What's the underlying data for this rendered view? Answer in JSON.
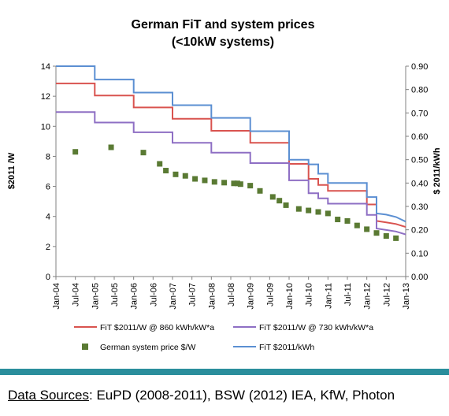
{
  "footer": {
    "source_label": "Data Sources",
    "source_text": ": EuPD (2008-2011), BSW (2012) IEA, KfW, Photon"
  },
  "colors": {
    "red": "#d9534f",
    "purple": "#8e6fc4",
    "blue": "#5b8fd2",
    "green": "#5a7a33",
    "bar": "#2a8e9c"
  },
  "chart_data": {
    "type": "line",
    "title": [
      "German FiT and system prices",
      "(<10kW systems)"
    ],
    "ylabel_left": "$2011 /W",
    "ylabel_right": "$ 2011/kWh",
    "ylim_left": [
      0,
      14
    ],
    "ylim_right": [
      0,
      0.9
    ],
    "yticks_left": [
      "0",
      "2",
      "4",
      "6",
      "8",
      "10",
      "12",
      "14"
    ],
    "yticks_right": [
      "0.00",
      "0.10",
      "0.20",
      "0.30",
      "0.40",
      "0.50",
      "0.60",
      "0.70",
      "0.80",
      "0.90"
    ],
    "xticks": [
      "Jan-04",
      "Jul-04",
      "Jan-05",
      "Jul-05",
      "Jan-06",
      "Jul-06",
      "Jan-07",
      "Jul-07",
      "Jan-08",
      "Jul-08",
      "Jan-09",
      "Jul-09",
      "Jan-10",
      "Jul-10",
      "Jan-11",
      "Jul-11",
      "Jan-12",
      "Jul-12",
      "Jan-13"
    ],
    "x_range": [
      2004.0,
      2013.0
    ],
    "grid": false,
    "legend_position": "bottom",
    "series": [
      {
        "name": "FiT $2011/W @ 860 kWh/kW*a",
        "axis": "left",
        "color": "#d9534f",
        "points": [
          [
            2004.0,
            12.85
          ],
          [
            2005.0,
            12.85
          ],
          [
            2005.0,
            12.05
          ],
          [
            2006.0,
            12.05
          ],
          [
            2006.0,
            11.25
          ],
          [
            2007.0,
            11.25
          ],
          [
            2007.0,
            10.5
          ],
          [
            2008.0,
            10.5
          ],
          [
            2008.0,
            9.7
          ],
          [
            2009.0,
            9.7
          ],
          [
            2009.0,
            8.9
          ],
          [
            2010.0,
            8.9
          ],
          [
            2010.0,
            7.5
          ],
          [
            2010.5,
            7.5
          ],
          [
            2010.5,
            6.5
          ],
          [
            2010.75,
            6.5
          ],
          [
            2010.75,
            6.1
          ],
          [
            2011.0,
            6.1
          ],
          [
            2011.0,
            5.7
          ],
          [
            2012.0,
            5.7
          ],
          [
            2012.0,
            4.8
          ],
          [
            2012.25,
            4.8
          ],
          [
            2012.25,
            3.7
          ],
          [
            2012.5,
            3.6
          ],
          [
            2012.75,
            3.5
          ],
          [
            2013.0,
            3.3
          ]
        ]
      },
      {
        "name": "FiT $2011/W @ 730 kWh/kW*a",
        "axis": "left",
        "color": "#8e6fc4",
        "points": [
          [
            2004.0,
            10.95
          ],
          [
            2005.0,
            10.95
          ],
          [
            2005.0,
            10.25
          ],
          [
            2006.0,
            10.25
          ],
          [
            2006.0,
            9.6
          ],
          [
            2007.0,
            9.6
          ],
          [
            2007.0,
            8.9
          ],
          [
            2008.0,
            8.9
          ],
          [
            2008.0,
            8.25
          ],
          [
            2009.0,
            8.25
          ],
          [
            2009.0,
            7.55
          ],
          [
            2010.0,
            7.55
          ],
          [
            2010.0,
            6.4
          ],
          [
            2010.5,
            6.4
          ],
          [
            2010.5,
            5.55
          ],
          [
            2010.75,
            5.55
          ],
          [
            2010.75,
            5.2
          ],
          [
            2011.0,
            5.2
          ],
          [
            2011.0,
            4.85
          ],
          [
            2012.0,
            4.85
          ],
          [
            2012.0,
            4.1
          ],
          [
            2012.25,
            4.1
          ],
          [
            2012.25,
            3.2
          ],
          [
            2012.5,
            3.1
          ],
          [
            2012.75,
            3.0
          ],
          [
            2013.0,
            2.8
          ]
        ]
      },
      {
        "name": "FiT $2011/kWh",
        "axis": "right",
        "color": "#5b8fd2",
        "points": [
          [
            2004.0,
            0.9
          ],
          [
            2005.0,
            0.9
          ],
          [
            2005.0,
            0.843
          ],
          [
            2006.0,
            0.843
          ],
          [
            2006.0,
            0.787
          ],
          [
            2007.0,
            0.787
          ],
          [
            2007.0,
            0.733
          ],
          [
            2008.0,
            0.733
          ],
          [
            2008.0,
            0.679
          ],
          [
            2009.0,
            0.679
          ],
          [
            2009.0,
            0.622
          ],
          [
            2010.0,
            0.622
          ],
          [
            2010.0,
            0.5
          ],
          [
            2010.5,
            0.5
          ],
          [
            2010.5,
            0.48
          ],
          [
            2010.75,
            0.48
          ],
          [
            2010.75,
            0.44
          ],
          [
            2011.0,
            0.44
          ],
          [
            2011.0,
            0.4
          ],
          [
            2012.0,
            0.4
          ],
          [
            2012.0,
            0.34
          ],
          [
            2012.25,
            0.34
          ],
          [
            2012.25,
            0.27
          ],
          [
            2012.5,
            0.265
          ],
          [
            2012.75,
            0.255
          ],
          [
            2013.0,
            0.235
          ]
        ]
      },
      {
        "name": "German system price $/W",
        "axis": "left",
        "color": "#5a7a33",
        "marker": "square",
        "points": [
          [
            2004.5,
            8.3
          ],
          [
            2005.42,
            8.6
          ],
          [
            2006.25,
            8.25
          ],
          [
            2006.67,
            7.5
          ],
          [
            2006.83,
            7.05
          ],
          [
            2007.08,
            6.8
          ],
          [
            2007.33,
            6.7
          ],
          [
            2007.58,
            6.5
          ],
          [
            2007.83,
            6.4
          ],
          [
            2008.08,
            6.3
          ],
          [
            2008.33,
            6.25
          ],
          [
            2008.58,
            6.2
          ],
          [
            2008.67,
            6.2
          ],
          [
            2008.75,
            6.15
          ],
          [
            2009.0,
            6.05
          ],
          [
            2009.25,
            5.7
          ],
          [
            2009.58,
            5.3
          ],
          [
            2009.75,
            5.05
          ],
          [
            2009.92,
            4.75
          ],
          [
            2010.25,
            4.5
          ],
          [
            2010.5,
            4.4
          ],
          [
            2010.75,
            4.3
          ],
          [
            2011.0,
            4.2
          ],
          [
            2011.25,
            3.8
          ],
          [
            2011.5,
            3.7
          ],
          [
            2011.75,
            3.4
          ],
          [
            2012.0,
            3.15
          ],
          [
            2012.25,
            2.9
          ],
          [
            2012.5,
            2.7
          ],
          [
            2012.75,
            2.55
          ]
        ]
      }
    ]
  }
}
